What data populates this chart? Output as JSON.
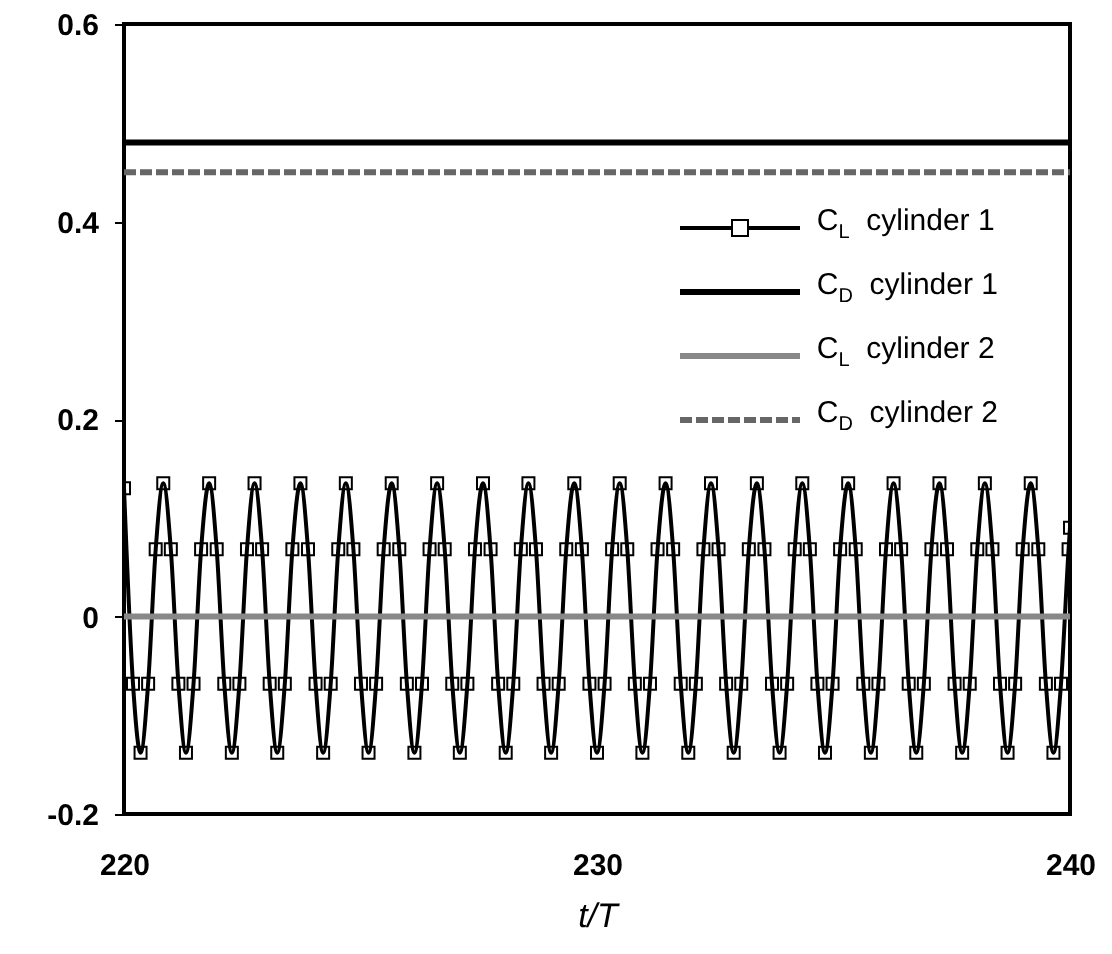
{
  "chart_data": {
    "type": "line",
    "xlabel": "t/T",
    "xlim": [
      220,
      240
    ],
    "xticks": [
      220,
      230,
      240
    ],
    "ylim": [
      -0.2,
      0.6
    ],
    "yticks": [
      -0.2,
      0,
      0.2,
      0.4,
      0.6
    ],
    "legend": "top right",
    "series": [
      {
        "name": "C$_{L}$  cylinder 1",
        "color": "#000000",
        "marker": "square",
        "x": [
          220.0,
          220.19,
          220.35,
          220.51,
          220.67,
          220.83,
          220.99,
          221.15,
          221.31,
          221.47,
          221.63,
          221.8,
          221.96,
          222.12,
          222.28,
          222.44,
          222.6,
          222.76,
          222.92,
          223.08,
          223.24,
          223.4,
          223.56,
          223.73,
          223.89,
          224.05,
          224.21,
          224.37,
          224.53,
          224.69,
          224.85,
          225.01,
          225.17,
          225.33,
          225.49,
          225.66,
          225.82,
          225.98,
          226.14,
          226.3,
          226.46,
          226.62,
          226.78,
          226.94,
          227.1,
          227.26,
          227.42,
          227.59,
          227.75,
          227.91,
          228.07,
          228.23,
          228.39,
          228.55,
          228.71,
          228.87,
          229.03,
          229.19,
          229.35,
          229.52,
          229.68,
          229.84,
          230.0,
          230.16,
          230.32,
          230.48,
          230.64,
          230.8,
          230.96,
          231.12,
          231.28,
          231.45,
          231.61,
          231.77,
          231.93,
          232.09,
          232.25,
          232.41,
          232.57,
          232.73,
          232.89,
          233.05,
          233.21,
          233.38,
          233.54,
          233.7,
          233.86,
          234.02,
          234.18,
          234.34,
          234.5,
          234.66,
          234.82,
          234.98,
          235.14,
          235.31,
          235.47,
          235.63,
          235.79,
          235.95,
          236.11,
          236.27,
          236.43,
          236.59,
          236.75,
          236.91,
          237.07,
          237.24,
          237.4,
          237.56,
          237.72,
          237.88,
          238.04,
          238.2,
          238.36,
          238.52,
          238.68,
          238.84,
          239.0,
          239.17,
          239.33,
          239.49,
          239.65,
          239.81,
          239.97,
          240.0
        ],
        "values": [
          0.13,
          -0.068,
          -0.138,
          -0.068,
          0.068,
          0.135,
          0.068,
          -0.068,
          -0.138,
          -0.068,
          0.068,
          0.135,
          0.068,
          -0.068,
          -0.138,
          -0.068,
          0.068,
          0.135,
          0.068,
          -0.068,
          -0.138,
          -0.068,
          0.068,
          0.135,
          0.068,
          -0.068,
          -0.138,
          -0.068,
          0.068,
          0.135,
          0.068,
          -0.068,
          -0.138,
          -0.068,
          0.068,
          0.135,
          0.068,
          -0.068,
          -0.138,
          -0.068,
          0.068,
          0.135,
          0.068,
          -0.068,
          -0.138,
          -0.068,
          0.068,
          0.135,
          0.068,
          -0.068,
          -0.138,
          -0.068,
          0.068,
          0.135,
          0.068,
          -0.068,
          -0.138,
          -0.068,
          0.068,
          0.135,
          0.068,
          -0.068,
          -0.138,
          -0.068,
          0.068,
          0.135,
          0.068,
          -0.068,
          -0.138,
          -0.068,
          0.068,
          0.135,
          0.068,
          -0.068,
          -0.138,
          -0.068,
          0.068,
          0.135,
          0.068,
          -0.068,
          -0.138,
          -0.068,
          0.068,
          0.135,
          0.068,
          -0.068,
          -0.138,
          -0.068,
          0.068,
          0.135,
          0.068,
          -0.068,
          -0.138,
          -0.068,
          0.068,
          0.135,
          0.068,
          -0.068,
          -0.138,
          -0.068,
          0.068,
          0.135,
          0.068,
          -0.068,
          -0.138,
          -0.068,
          0.068,
          0.135,
          0.068,
          -0.068,
          -0.138,
          -0.068,
          0.068,
          0.135,
          0.068,
          -0.068,
          -0.138,
          -0.068,
          0.068,
          0.135,
          0.068,
          -0.068,
          -0.138,
          -0.068,
          0.068,
          0.09
        ]
      },
      {
        "name": "C$_{D}$  cylinder 1",
        "color": "#000000",
        "x": [
          220,
          240
        ],
        "values": [
          0.48,
          0.48
        ]
      },
      {
        "name": "C$_{L}$  cylinder 2",
        "color": "#888888",
        "x": [
          220,
          240
        ],
        "values": [
          0,
          0
        ]
      },
      {
        "name": "C$_{D}$  cylinder 2",
        "color": "#666666",
        "line_style": "dashed",
        "x": [
          220,
          240
        ],
        "values": [
          0.45,
          0.45
        ]
      }
    ]
  }
}
